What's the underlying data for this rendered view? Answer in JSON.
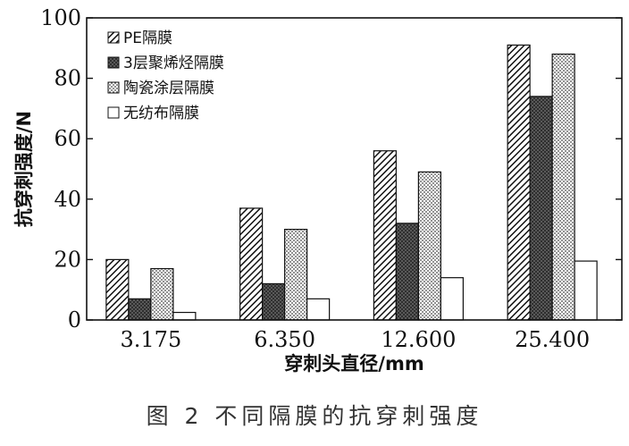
{
  "chart_data": {
    "type": "bar",
    "ylabel": "抗穿刺强度/N",
    "xlabel": "穿刺头直径/mm",
    "categories": [
      "3.175",
      "6.350",
      "12.600",
      "25.400"
    ],
    "ylim": [
      0,
      100
    ],
    "yticks": [
      0,
      20,
      40,
      60,
      80,
      100
    ],
    "legend_position": "top-left",
    "grid": false,
    "series": [
      {
        "name": "PE隔膜",
        "pattern": "diagonal-hatch",
        "values": [
          20,
          37,
          56,
          91
        ]
      },
      {
        "name": "3层聚烯烃隔膜",
        "pattern": "dark-crosshatch",
        "values": [
          7,
          12,
          32,
          74
        ]
      },
      {
        "name": "陶瓷涂层隔膜",
        "pattern": "dots",
        "values": [
          17,
          30,
          49,
          88
        ]
      },
      {
        "name": "无纺布隔膜",
        "pattern": "white",
        "values": [
          2.5,
          7,
          14,
          19.5
        ]
      }
    ]
  },
  "caption": "图 2   不同隔膜的抗穿刺强度"
}
